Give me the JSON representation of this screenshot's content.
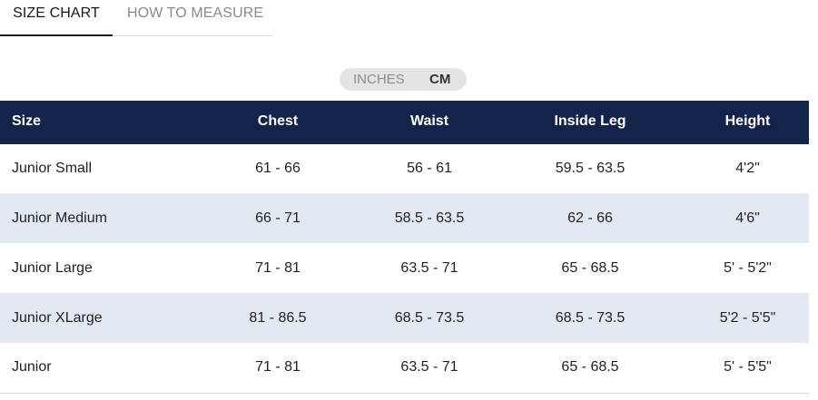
{
  "tabs": [
    {
      "label": "SIZE CHART",
      "active": true
    },
    {
      "label": "HOW TO MEASURE",
      "active": false
    }
  ],
  "unit_toggle": {
    "options": [
      "INCHES",
      "CM"
    ],
    "selected": "CM"
  },
  "table": {
    "headers": [
      "Size",
      "Chest",
      "Waist",
      "Inside Leg",
      "Height"
    ],
    "rows": [
      [
        "Junior Small",
        "61 - 66",
        "56 - 61",
        "59.5 - 63.5",
        "4'2\""
      ],
      [
        "Junior Medium",
        "66 - 71",
        "58.5 - 63.5",
        "62 - 66",
        "4'6\""
      ],
      [
        "Junior Large",
        "71 - 81",
        "63.5 - 71",
        "65 - 68.5",
        "5' - 5'2\""
      ],
      [
        "Junior XLarge",
        "81 - 86.5",
        "68.5 - 73.5",
        "68.5 - 73.5",
        "5'2 - 5'5\""
      ],
      [
        "Junior",
        "71 - 81",
        "63.5 - 71",
        "65 - 68.5",
        "5' - 5'5\""
      ]
    ]
  },
  "colors": {
    "header_bg": "#13244a",
    "stripe_bg": "#e3e9f2",
    "toggle_bg": "#e4e4e4"
  }
}
